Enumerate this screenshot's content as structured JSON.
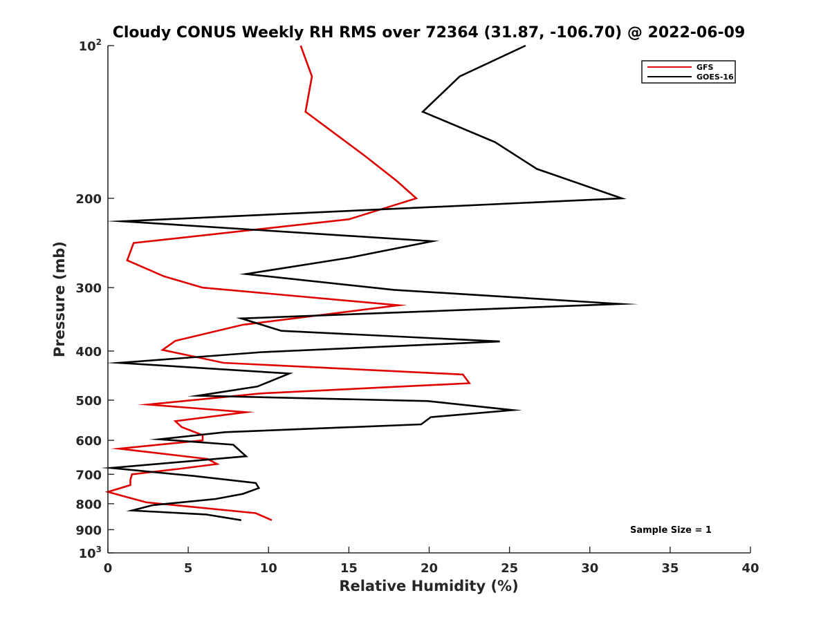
{
  "chart_data": {
    "type": "line",
    "title": "Cloudy CONUS Weekly RH RMS over 72364 (31.87, -106.70) @ 2022-06-09",
    "xlabel": "Relative Humidity (%)",
    "ylabel": "Pressure (mb)",
    "xlim": [
      0,
      40
    ],
    "ylim": [
      100,
      1000
    ],
    "y_scale": "log",
    "y_reversed": true,
    "grid": false,
    "legend_position": "top-right",
    "x_ticks": [
      0,
      5,
      10,
      15,
      20,
      25,
      30,
      35,
      40
    ],
    "y_ticks": [
      {
        "value": 100,
        "base": "10",
        "exp": "2"
      },
      {
        "value": 200,
        "label": "200"
      },
      {
        "value": 300,
        "label": "300"
      },
      {
        "value": 400,
        "label": "400"
      },
      {
        "value": 500,
        "label": "500"
      },
      {
        "value": 600,
        "label": "600"
      },
      {
        "value": 700,
        "label": "700"
      },
      {
        "value": 800,
        "label": "800"
      },
      {
        "value": 900,
        "label": "900"
      },
      {
        "value": 1000,
        "base": "10",
        "exp": "3"
      }
    ],
    "series": [
      {
        "name": "GFS",
        "color": "#e00000",
        "points": [
          [
            12.0,
            100
          ],
          [
            12.7,
            115
          ],
          [
            12.3,
            135
          ],
          [
            16.0,
            165
          ],
          [
            18.0,
            185
          ],
          [
            19.2,
            200
          ],
          [
            15.0,
            220
          ],
          [
            1.6,
            245
          ],
          [
            1.2,
            265
          ],
          [
            3.5,
            285
          ],
          [
            5.9,
            300
          ],
          [
            18.1,
            325
          ],
          [
            8.4,
            355
          ],
          [
            4.2,
            382
          ],
          [
            3.4,
            398
          ],
          [
            7.2,
            422
          ],
          [
            22.1,
            445
          ],
          [
            22.5,
            463
          ],
          [
            9.5,
            485
          ],
          [
            2.5,
            510
          ],
          [
            8.6,
            528
          ],
          [
            4.2,
            550
          ],
          [
            4.6,
            565
          ],
          [
            5.9,
            586
          ],
          [
            5.9,
            600
          ],
          [
            0.7,
            623
          ],
          [
            6.2,
            653
          ],
          [
            6.8,
            668
          ],
          [
            4.4,
            683
          ],
          [
            1.5,
            700
          ],
          [
            1.4,
            718
          ],
          [
            1.4,
            735
          ],
          [
            0.0,
            758
          ],
          [
            1.1,
            775
          ],
          [
            2.4,
            795
          ],
          [
            9.2,
            835
          ],
          [
            10.2,
            862
          ]
        ]
      },
      {
        "name": "GOES-16",
        "color": "#000000",
        "points": [
          [
            26.0,
            100
          ],
          [
            21.9,
            115
          ],
          [
            19.6,
            135
          ],
          [
            24.1,
            155
          ],
          [
            26.7,
            175
          ],
          [
            32.0,
            200
          ],
          [
            0.9,
            222
          ],
          [
            20.2,
            243
          ],
          [
            15.0,
            262
          ],
          [
            8.6,
            282
          ],
          [
            17.8,
            303
          ],
          [
            31.9,
            323
          ],
          [
            8.3,
            345
          ],
          [
            10.8,
            365
          ],
          [
            24.4,
            383
          ],
          [
            9.6,
            402
          ],
          [
            0.7,
            422
          ],
          [
            11.3,
            443
          ],
          [
            9.3,
            470
          ],
          [
            5.6,
            490
          ],
          [
            19.9,
            502
          ],
          [
            25.2,
            523
          ],
          [
            20.1,
            540
          ],
          [
            19.5,
            558
          ],
          [
            7.3,
            578
          ],
          [
            3.2,
            597
          ],
          [
            7.8,
            612
          ],
          [
            8.6,
            645
          ],
          [
            0.2,
            680
          ],
          [
            5.3,
            705
          ],
          [
            9.2,
            728
          ],
          [
            9.4,
            745
          ],
          [
            8.4,
            765
          ],
          [
            6.7,
            783
          ],
          [
            2.8,
            805
          ],
          [
            1.5,
            825
          ],
          [
            6.1,
            840
          ],
          [
            8.3,
            862
          ]
        ]
      }
    ],
    "annotation": "Sample Size = 1"
  }
}
